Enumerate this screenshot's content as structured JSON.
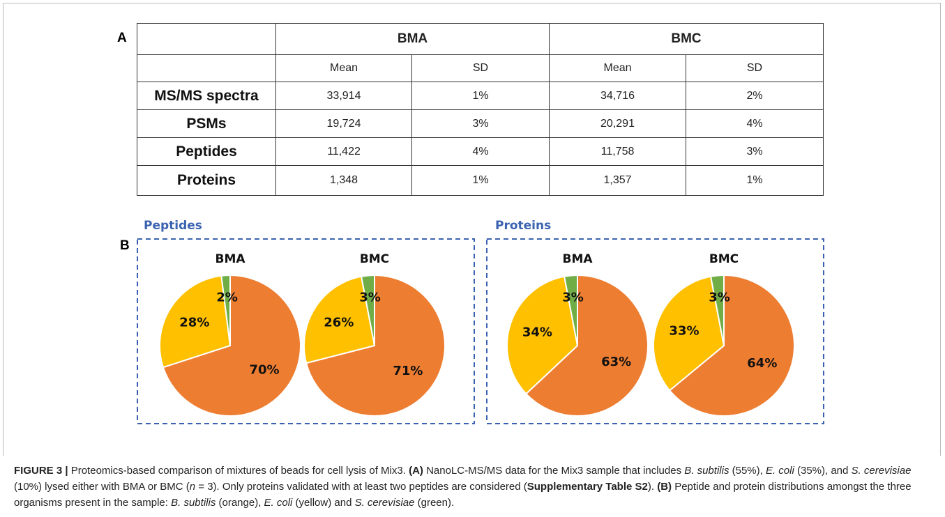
{
  "panel_labels": [
    "A",
    "B"
  ],
  "table": {
    "groups": [
      "BMA",
      "BMC"
    ],
    "subheaders": [
      "Mean",
      "SD",
      "Mean",
      "SD"
    ],
    "rows": [
      [
        "MS/MS spectra",
        "33,914",
        "1%",
        "34,716",
        "2%"
      ],
      [
        "PSMs",
        "19,724",
        "3%",
        "20,291",
        "4%"
      ],
      [
        "Peptides",
        "11,422",
        "4%",
        "11,758",
        "3%"
      ],
      [
        "Proteins",
        "1,348",
        "1%",
        "1,357",
        "1%"
      ]
    ]
  },
  "panel_b": {
    "groups": [
      "Peptides",
      "Proteins"
    ]
  },
  "chart_data": [
    {
      "type": "pie",
      "title": "BMA",
      "values": [
        70,
        28,
        2
      ],
      "value_labels": [
        "70%",
        "28%",
        "2%"
      ],
      "colors": [
        "#ED7D31",
        "#FFC000",
        "#70AD47"
      ]
    },
    {
      "type": "pie",
      "title": "BMC",
      "values": [
        71,
        26,
        3
      ],
      "value_labels": [
        "71%",
        "26%",
        "3%"
      ],
      "colors": [
        "#ED7D31",
        "#FFC000",
        "#70AD47"
      ]
    },
    {
      "type": "pie",
      "title": "BMA",
      "values": [
        63,
        34,
        3
      ],
      "value_labels": [
        "63%",
        "34%",
        "3%"
      ],
      "colors": [
        "#ED7D31",
        "#FFC000",
        "#70AD47"
      ]
    },
    {
      "type": "pie",
      "title": "BMC",
      "values": [
        64,
        33,
        3
      ],
      "value_labels": [
        "64%",
        "33%",
        "3%"
      ],
      "colors": [
        "#ED7D31",
        "#FFC000",
        "#70AD47"
      ]
    }
  ],
  "caption": [
    "FIGURE 3 |",
    " Proteomics-based comparison of mixtures of beads for cell lysis of Mix3. ",
    "(A)",
    " NanoLC-MS/MS data for the Mix3 sample that includes ",
    "B. subtilis",
    " (55%), ",
    "E. coli",
    " (35%), and ",
    "S. cerevisiae",
    " (10%) lysed either with BMA or BMC (",
    "n",
    " = 3). Only proteins validated with at least two peptides are considered (",
    "Supplementary Table S2",
    "). ",
    "(B)",
    " Peptide and protein distributions amongst the three organisms present in the sample: ",
    "B. subtilis",
    " (orange), ",
    "E. coli",
    " (yellow) and ",
    "S. cerevisiae",
    " (green)."
  ]
}
